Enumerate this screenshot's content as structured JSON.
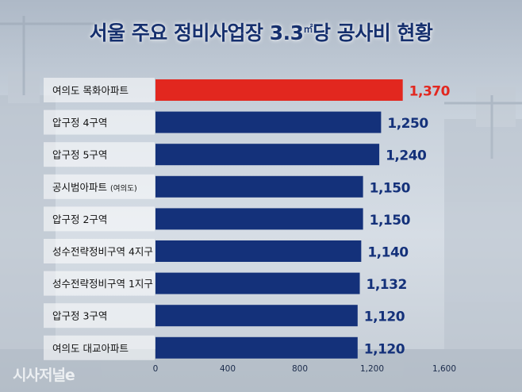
{
  "title_main": "서울 주요 정비사업장 3.3",
  "title_unit_sup": "㎡",
  "title_tail": "당 공사비 현황",
  "watermark": "시사저널e",
  "colors": {
    "highlight": "#e2271f",
    "bar": "#14317a",
    "label_highlight": "#e2271f",
    "label": "#14317a"
  },
  "chart_data": {
    "type": "bar",
    "orientation": "horizontal",
    "title": "서울 주요 정비사업장 3.3㎡당 공사비 현황",
    "categories": [
      "여의도 목화아파트",
      "압구정 4구역",
      "압구정 5구역",
      "공시범아파트 (여의도)",
      "압구정 2구역",
      "성수전략정비구역 4지구",
      "성수전략정비구역 1지구",
      "압구정 3구역",
      "여의도 대교아파트"
    ],
    "category_main": [
      "여의도 목화아파트",
      "압구정 4구역",
      "압구정 5구역",
      "공시범아파트",
      "압구정 2구역",
      "성수전략정비구역 4지구",
      "성수전략정비구역 1지구",
      "압구정 3구역",
      "여의도 대교아파트"
    ],
    "category_note": [
      "",
      "",
      "",
      "(여의도)",
      "",
      "",
      "",
      "",
      ""
    ],
    "values": [
      1370,
      1250,
      1240,
      1150,
      1150,
      1140,
      1132,
      1120,
      1120
    ],
    "value_labels": [
      "1,370",
      "1,250",
      "1,240",
      "1,150",
      "1,150",
      "1,140",
      "1,132",
      "1,120",
      "1,120"
    ],
    "highlight_index": 0,
    "xlim": [
      0,
      1600
    ],
    "xticks": [
      0,
      400,
      800,
      1200,
      1600
    ],
    "xtick_labels": [
      "0",
      "400",
      "800",
      "1,200",
      "1,600"
    ],
    "grid": false,
    "xlabel": "",
    "ylabel": ""
  }
}
